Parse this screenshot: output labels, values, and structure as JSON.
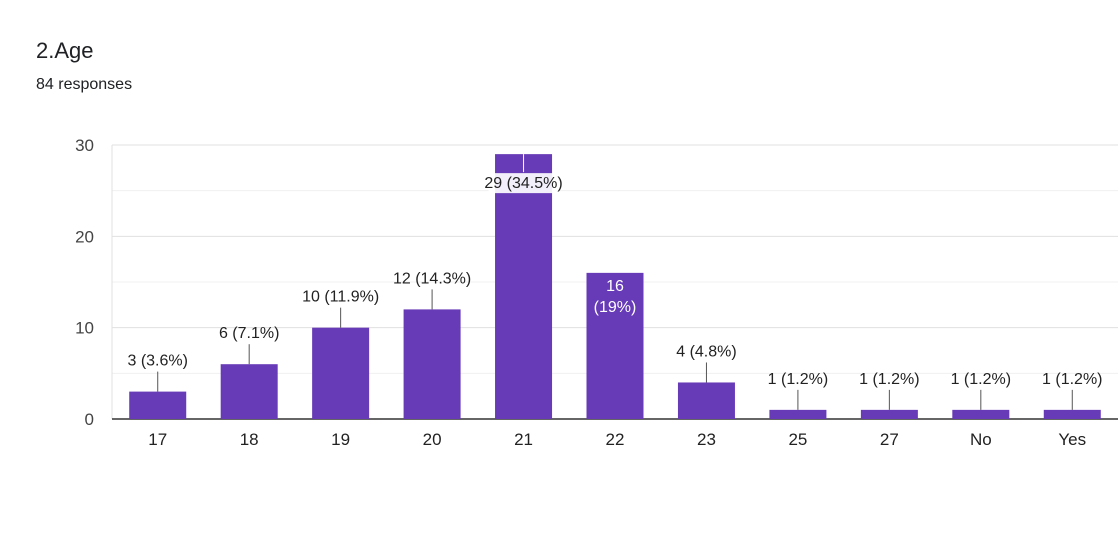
{
  "header": {
    "title": "2.Age",
    "responses": "84 responses"
  },
  "colors": {
    "bar": "#673ab7",
    "grid": "#e8e8e8",
    "axis": "#333333"
  },
  "chart_data": {
    "type": "bar",
    "title": "2.Age",
    "subtitle": "84 responses",
    "categories": [
      "17",
      "18",
      "19",
      "20",
      "21",
      "22",
      "23",
      "25",
      "27",
      "No",
      "Yes"
    ],
    "values": [
      3,
      6,
      10,
      12,
      29,
      16,
      4,
      1,
      1,
      1,
      1
    ],
    "data_labels": [
      "3 (3.6%)",
      "6 (7.1%)",
      "10 (11.9%)",
      "12 (14.3%)",
      "29 (34.5%)",
      "16 (19%)",
      "4 (4.8%)",
      "1 (1.2%)",
      "1 (1.2%)",
      "1 (1.2%)",
      "1 (1.2%)"
    ],
    "ylim": [
      0,
      30
    ],
    "yticks": [
      0,
      10,
      20,
      30
    ],
    "grid": true,
    "xlabel": "",
    "ylabel": ""
  }
}
